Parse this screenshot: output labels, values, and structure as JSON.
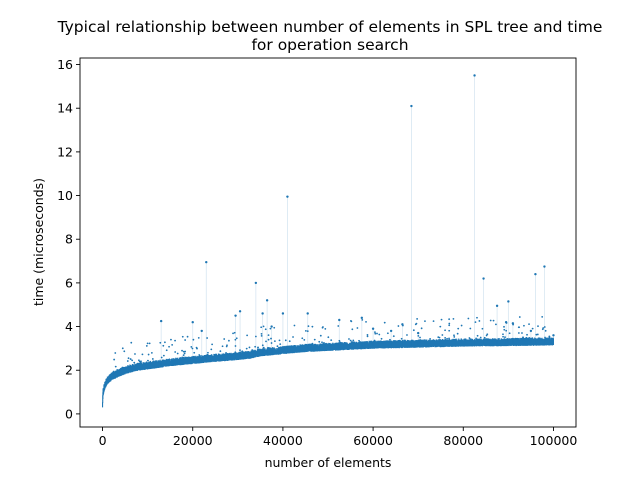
{
  "chart_data": {
    "type": "scatter",
    "title": [
      "Typical relationship between number of elements in SPL tree and time",
      "for operation search"
    ],
    "xlabel": "number of elements",
    "ylabel": "time (microseconds)",
    "xlim": [
      -5000,
      105000
    ],
    "ylim": [
      -0.6,
      16.3
    ],
    "xticks": [
      0,
      20000,
      40000,
      60000,
      80000,
      100000
    ],
    "yticks": [
      0,
      2,
      4,
      6,
      8,
      10,
      12,
      14,
      16
    ],
    "grid": false,
    "legend": "none",
    "marker_color": "#1f77b4",
    "series": [
      {
        "x_range": [
          0,
          100000
        ],
        "baseline": [
          [
            0,
            0.4
          ],
          [
            100,
            0.9
          ],
          [
            300,
            1.1
          ],
          [
            600,
            1.3
          ],
          [
            1000,
            1.45
          ],
          [
            1500,
            1.55
          ],
          [
            2000,
            1.65
          ],
          [
            3000,
            1.75
          ],
          [
            4000,
            1.85
          ],
          [
            6000,
            2.0
          ],
          [
            8000,
            2.1
          ],
          [
            10000,
            2.15
          ],
          [
            15000,
            2.3
          ],
          [
            20000,
            2.4
          ],
          [
            25000,
            2.5
          ],
          [
            30000,
            2.58
          ],
          [
            33000,
            2.65
          ],
          [
            35000,
            2.75
          ],
          [
            40000,
            2.85
          ],
          [
            45000,
            2.95
          ],
          [
            50000,
            3.0
          ],
          [
            55000,
            3.05
          ],
          [
            60000,
            3.1
          ],
          [
            70000,
            3.15
          ],
          [
            80000,
            3.2
          ],
          [
            90000,
            3.22
          ],
          [
            100000,
            3.25
          ]
        ],
        "outliers": [
          [
            82500,
            15.5
          ],
          [
            68500,
            14.1
          ],
          [
            41000,
            9.95
          ],
          [
            23000,
            6.95
          ],
          [
            96000,
            6.4
          ],
          [
            98000,
            6.75
          ],
          [
            84500,
            6.2
          ],
          [
            34000,
            6.0
          ],
          [
            36500,
            5.2
          ],
          [
            90000,
            5.15
          ],
          [
            87500,
            4.95
          ],
          [
            30500,
            4.7
          ],
          [
            40000,
            4.6
          ],
          [
            45500,
            4.6
          ],
          [
            13000,
            4.25
          ],
          [
            20000,
            4.2
          ],
          [
            52500,
            4.3
          ],
          [
            57500,
            4.4
          ],
          [
            66500,
            4.1
          ],
          [
            89500,
            4.2
          ],
          [
            91000,
            4.15
          ],
          [
            100000,
            3.6
          ],
          [
            35500,
            4.6
          ],
          [
            29500,
            4.5
          ],
          [
            37500,
            4.0
          ],
          [
            22000,
            3.8
          ],
          [
            60000,
            3.9
          ],
          [
            64000,
            3.8
          ],
          [
            70000,
            3.7
          ],
          [
            95000,
            3.8
          ]
        ]
      }
    ]
  }
}
